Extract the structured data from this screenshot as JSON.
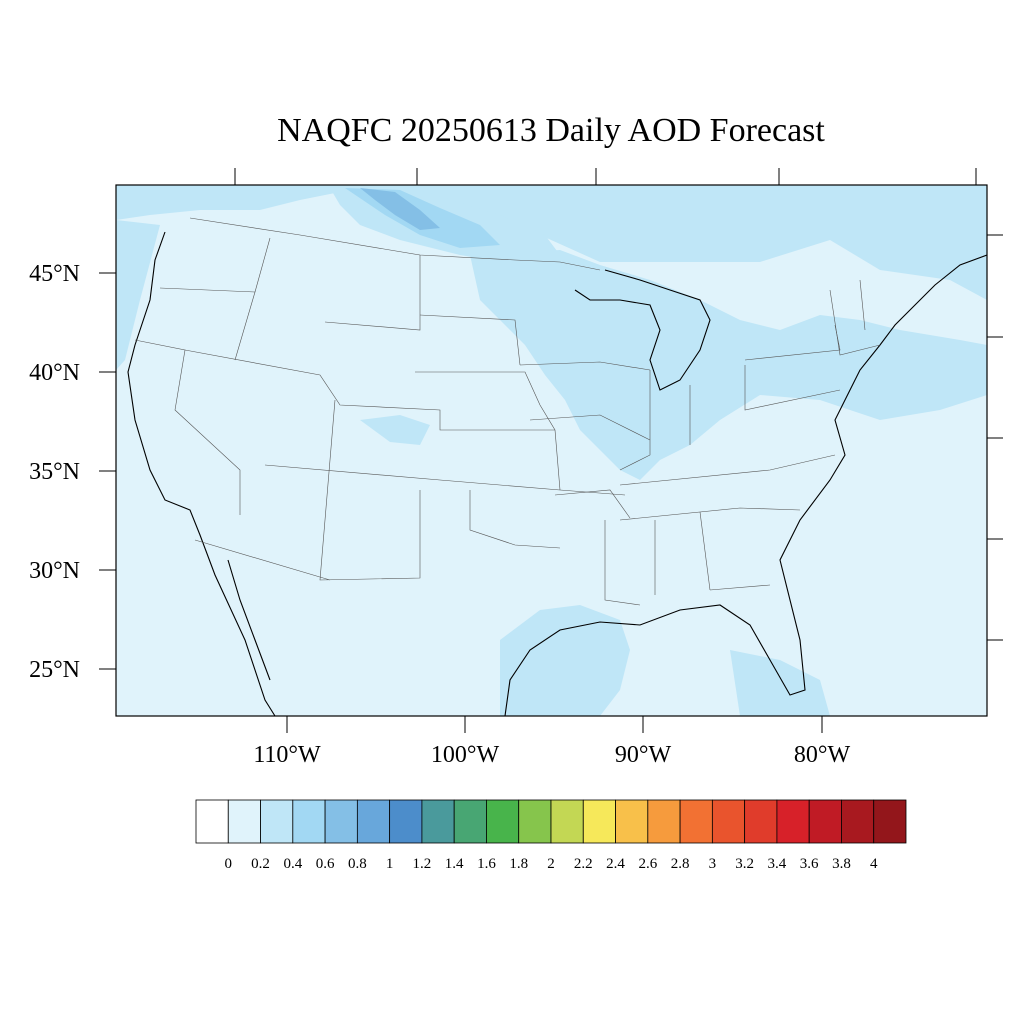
{
  "title": "NAQFC 20250613 Daily AOD Forecast",
  "lat_labels": [
    "45°N",
    "40°N",
    "35°N",
    "30°N",
    "25°N"
  ],
  "lon_labels": [
    "110°W",
    "100°W",
    "90°W",
    "80°W"
  ],
  "colorbar": {
    "levels": [
      "0",
      "0.2",
      "0.4",
      "0.6",
      "0.8",
      "1",
      "1.2",
      "1.4",
      "1.6",
      "1.8",
      "2",
      "2.2",
      "2.4",
      "2.6",
      "2.8",
      "3",
      "3.2",
      "3.4",
      "3.6",
      "3.8",
      "4"
    ],
    "colors": [
      "#ffffff",
      "#e0f3fb",
      "#bfe6f7",
      "#a2d8f3",
      "#84bfe6",
      "#68a7db",
      "#4c8dcb",
      "#4a9a9c",
      "#48a673",
      "#48b44b",
      "#86c54c",
      "#c3d754",
      "#f6e85a",
      "#f8c04a",
      "#f69b3d",
      "#f27133",
      "#e9542d",
      "#e03c2b",
      "#d72129",
      "#c01b25",
      "#a8191f",
      "#93161b"
    ]
  },
  "map_colors": {
    "background": "#e0f3fb",
    "level_04": "#bfe6f7",
    "level_06": "#a2d8f3",
    "level_08": "#84bfe6"
  }
}
